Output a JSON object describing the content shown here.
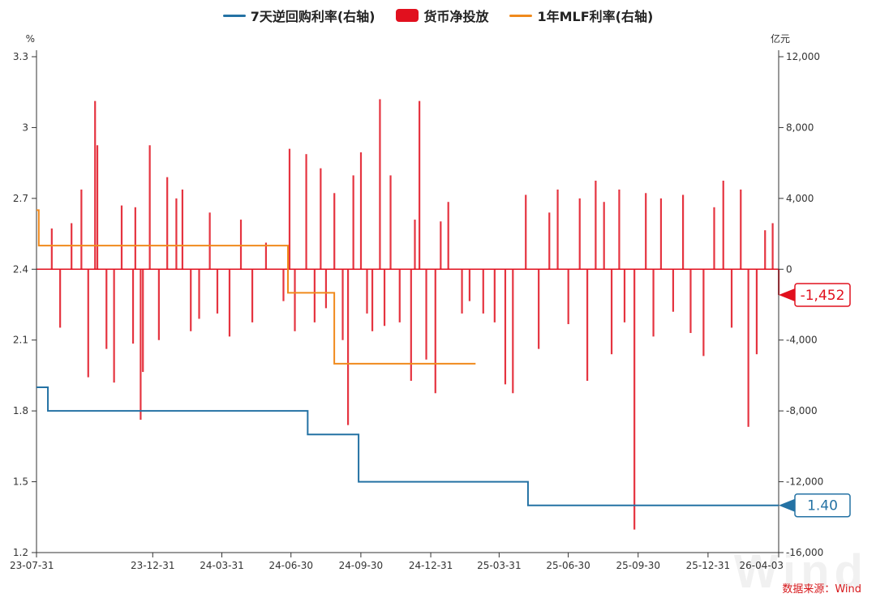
{
  "legend": {
    "rr": "7天逆回购利率(右轴)",
    "net": "货币净投放",
    "mlf": "1年MLF利率(右轴)"
  },
  "source_note": "数据来源：Wind",
  "watermark": "Wind",
  "colors": {
    "rr": "#2472a4",
    "net": "#e1101e",
    "mlf": "#f08a1c",
    "axis": "#333333"
  },
  "chart_data": {
    "type": "bar+line",
    "left_axis": {
      "unit": "%",
      "min": 1.2,
      "max": 3.3,
      "ticks": [
        "1.2",
        "1.5",
        "1.8",
        "2.1",
        "2.4",
        "2.7",
        "3",
        "3.3"
      ]
    },
    "right_axis": {
      "unit": "亿元",
      "min": -16000,
      "max": 12000,
      "ticks": [
        "-16,000",
        "-12,000",
        "-8,000",
        "-4,000",
        "0",
        "4,000",
        "8,000",
        "12,000"
      ]
    },
    "x_axis": {
      "start": "2023-07-31",
      "end": "2026-04-03",
      "ticks": [
        {
          "label": "23-07-31",
          "date": "2023-07-31"
        },
        {
          "label": "23-12-31",
          "date": "2023-12-31"
        },
        {
          "label": "24-03-31",
          "date": "2024-03-31"
        },
        {
          "label": "24-06-30",
          "date": "2024-06-30"
        },
        {
          "label": "24-09-30",
          "date": "2024-09-30"
        },
        {
          "label": "24-12-31",
          "date": "2024-12-31"
        },
        {
          "label": "25-03-31",
          "date": "2025-03-31"
        },
        {
          "label": "25-06-30",
          "date": "2025-06-30"
        },
        {
          "label": "25-09-30",
          "date": "2025-09-30"
        },
        {
          "label": "25-12-31",
          "date": "2025-12-31"
        },
        {
          "label": "26-04-03",
          "date": "2026-04-03"
        }
      ]
    },
    "series": [
      {
        "name": "7天逆回购利率(右轴)",
        "type": "step-line",
        "axis": "left",
        "points": [
          [
            "2023-07-31",
            1.9
          ],
          [
            "2023-08-15",
            1.8
          ],
          [
            "2024-07-22",
            1.7
          ],
          [
            "2024-09-27",
            1.5
          ],
          [
            "2025-05-08",
            1.4
          ],
          [
            "2026-04-03",
            1.4
          ]
        ]
      },
      {
        "name": "1年MLF利率(右轴)",
        "type": "step-line",
        "axis": "left",
        "points": [
          [
            "2023-07-31",
            2.65
          ],
          [
            "2023-08-03",
            2.5
          ],
          [
            "2024-06-25",
            2.5
          ],
          [
            "2024-06-26",
            2.3
          ],
          [
            "2024-08-25",
            2.3
          ],
          [
            "2024-08-26",
            2.0
          ],
          [
            "2025-02-28",
            2.0
          ]
        ]
      },
      {
        "name": "货币净投放",
        "type": "bar",
        "axis": "right",
        "points": [
          [
            "2023-08-20",
            2300
          ],
          [
            "2023-08-31",
            -3300
          ],
          [
            "2023-09-15",
            2600
          ],
          [
            "2023-09-28",
            4500
          ],
          [
            "2023-10-07",
            -6100
          ],
          [
            "2023-10-16",
            9500
          ],
          [
            "2023-10-19",
            7000
          ],
          [
            "2023-10-31",
            -4500
          ],
          [
            "2023-11-10",
            -6400
          ],
          [
            "2023-11-20",
            3600
          ],
          [
            "2023-12-05",
            -4200
          ],
          [
            "2023-12-08",
            3500
          ],
          [
            "2023-12-15",
            -8500
          ],
          [
            "2023-12-18",
            -5800
          ],
          [
            "2023-12-27",
            7000
          ],
          [
            "2024-01-08",
            -4000
          ],
          [
            "2024-01-19",
            5200
          ],
          [
            "2024-01-31",
            4000
          ],
          [
            "2024-02-08",
            4500
          ],
          [
            "2024-02-19",
            -3500
          ],
          [
            "2024-03-01",
            -2800
          ],
          [
            "2024-03-15",
            3200
          ],
          [
            "2024-03-25",
            -2500
          ],
          [
            "2024-04-10",
            -3800
          ],
          [
            "2024-04-25",
            2800
          ],
          [
            "2024-05-10",
            -3000
          ],
          [
            "2024-05-28",
            1500
          ],
          [
            "2024-06-20",
            -1800
          ],
          [
            "2024-06-28",
            6800
          ],
          [
            "2024-07-05",
            -3500
          ],
          [
            "2024-07-20",
            6500
          ],
          [
            "2024-07-31",
            -3000
          ],
          [
            "2024-08-08",
            5700
          ],
          [
            "2024-08-15",
            -2200
          ],
          [
            "2024-08-26",
            4300
          ],
          [
            "2024-09-06",
            -4000
          ],
          [
            "2024-09-13",
            -8800
          ],
          [
            "2024-09-20",
            5300
          ],
          [
            "2024-09-30",
            6600
          ],
          [
            "2024-10-08",
            -2500
          ],
          [
            "2024-10-15",
            -3500
          ],
          [
            "2024-10-25",
            9600
          ],
          [
            "2024-10-31",
            -3200
          ],
          [
            "2024-11-08",
            5300
          ],
          [
            "2024-11-20",
            -3000
          ],
          [
            "2024-12-05",
            -6300
          ],
          [
            "2024-12-10",
            2800
          ],
          [
            "2024-12-16",
            9500
          ],
          [
            "2024-12-25",
            -5100
          ],
          [
            "2025-01-06",
            -7000
          ],
          [
            "2025-01-13",
            2700
          ],
          [
            "2025-01-23",
            3800
          ],
          [
            "2025-02-10",
            -2500
          ],
          [
            "2025-02-20",
            -1800
          ],
          [
            "2025-03-10",
            -2500
          ],
          [
            "2025-03-25",
            -3000
          ],
          [
            "2025-04-08",
            -6500
          ],
          [
            "2025-04-18",
            -7000
          ],
          [
            "2025-05-05",
            4200
          ],
          [
            "2025-05-22",
            -4500
          ],
          [
            "2025-06-05",
            3200
          ],
          [
            "2025-06-16",
            4500
          ],
          [
            "2025-06-30",
            -3100
          ],
          [
            "2025-07-15",
            4000
          ],
          [
            "2025-07-25",
            -6300
          ],
          [
            "2025-08-05",
            5000
          ],
          [
            "2025-08-16",
            3800
          ],
          [
            "2025-08-26",
            -4800
          ],
          [
            "2025-09-05",
            4500
          ],
          [
            "2025-09-12",
            -3000
          ],
          [
            "2025-09-25",
            -14700
          ],
          [
            "2025-10-10",
            4300
          ],
          [
            "2025-10-20",
            -3800
          ],
          [
            "2025-10-30",
            4000
          ],
          [
            "2025-11-15",
            -2400
          ],
          [
            "2025-11-28",
            4200
          ],
          [
            "2025-12-08",
            -3600
          ],
          [
            "2025-12-25",
            -4900
          ],
          [
            "2026-01-08",
            3500
          ],
          [
            "2026-01-20",
            5000
          ],
          [
            "2026-01-31",
            -3300
          ],
          [
            "2026-02-12",
            4500
          ],
          [
            "2026-02-22",
            -8900
          ],
          [
            "2026-03-05",
            -4800
          ],
          [
            "2026-03-16",
            2200
          ],
          [
            "2026-03-26",
            2600
          ],
          [
            "2026-04-03",
            -1452
          ]
        ]
      }
    ],
    "last_value_labels": {
      "net": "-1,452",
      "rr": "1.40"
    }
  }
}
